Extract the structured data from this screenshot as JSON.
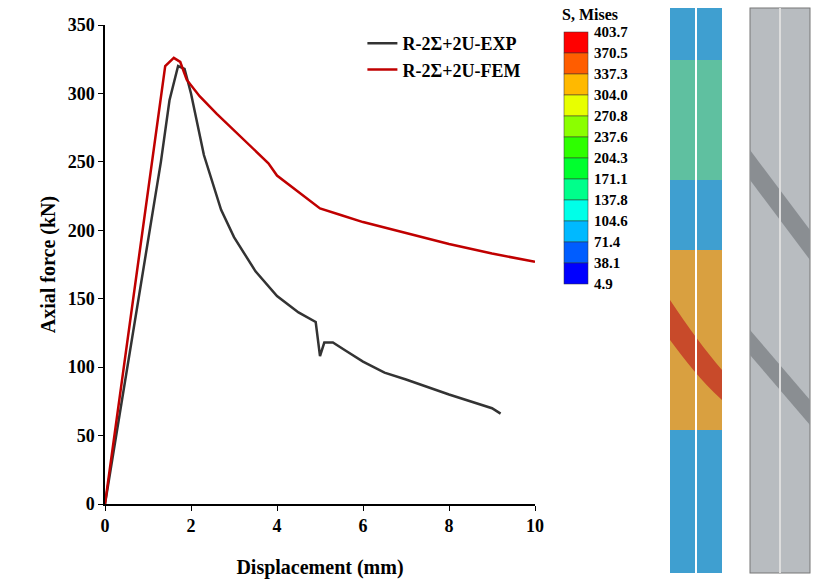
{
  "chart_data": {
    "type": "line",
    "xlabel": "Displacement (mm)",
    "ylabel": "Axial force (kN)",
    "xlim": [
      0,
      10
    ],
    "xticks": [
      0,
      2,
      4,
      6,
      8,
      10
    ],
    "ylim": [
      0,
      350
    ],
    "yticks": [
      0,
      50,
      100,
      150,
      200,
      250,
      300,
      350
    ],
    "grid": false,
    "legend": "upper right",
    "series": [
      {
        "name": "R-2Σ+2U-EXP",
        "color": "#333333",
        "x": [
          0,
          0.5,
          1,
          1.3,
          1.5,
          1.7,
          1.85,
          2,
          2.3,
          2.7,
          3,
          3.5,
          4,
          4.5,
          4.9,
          4.95,
          5,
          5.1,
          5.3,
          5.6,
          6,
          6.5,
          7,
          8,
          9,
          9.2
        ],
        "values": [
          0,
          95,
          190,
          250,
          295,
          320,
          318,
          300,
          255,
          215,
          195,
          170,
          152,
          140,
          133,
          120,
          108,
          118,
          118,
          112,
          104,
          96,
          91,
          80,
          70,
          66
        ]
      },
      {
        "name": "R-2Σ+2U-FEM",
        "color": "#c00000",
        "x": [
          0,
          0.5,
          1,
          1.3,
          1.4,
          1.6,
          1.75,
          1.9,
          2.2,
          2.6,
          3,
          3.5,
          3.8,
          4,
          4.5,
          5,
          5.5,
          6,
          7,
          8,
          9,
          10
        ],
        "values": [
          0,
          115,
          230,
          300,
          320,
          326,
          323,
          310,
          298,
          285,
          273,
          258,
          249,
          240,
          228,
          216,
          211,
          206,
          198,
          190,
          183,
          177
        ]
      }
    ]
  },
  "contour_legend": {
    "title": "S, Mises",
    "levels": [
      403.7,
      370.5,
      337.3,
      {
        "value": 304,
        "label": "304.0"
      },
      270.8,
      237.6,
      204.3,
      171.1,
      137.8,
      104.6,
      71.4,
      38.1,
      4.9
    ],
    "colors": [
      "#ff0000",
      "#ff5d00",
      "#ffb900",
      "#e8ff00",
      "#8bff00",
      "#2eff00",
      "#00ff2e",
      "#00ff8b",
      "#00ffe8",
      "#00b9ff",
      "#005dff",
      "#0000ff"
    ]
  }
}
